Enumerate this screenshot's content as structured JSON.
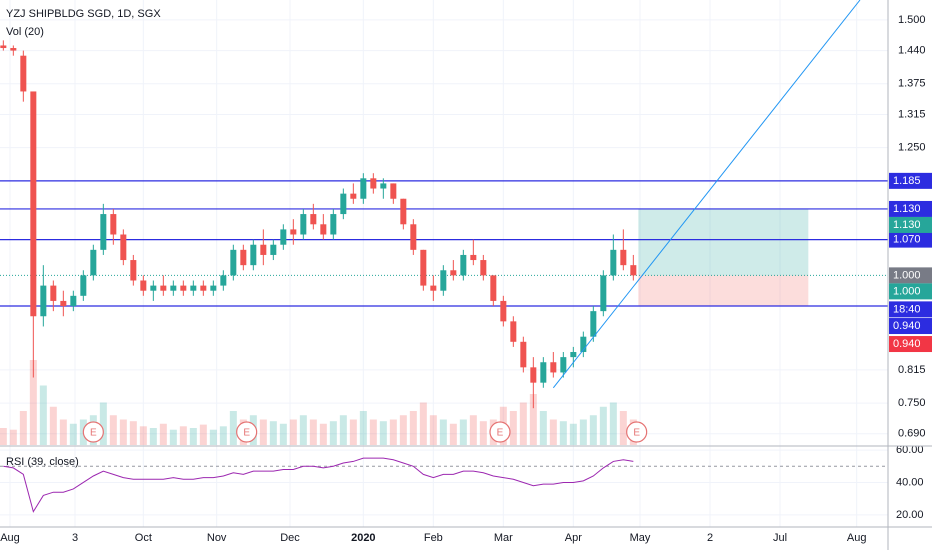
{
  "chart_data": {
    "type": "candlestick",
    "title": "YZJ SHIPBLDG SGD, 1D, SGX",
    "up_color": "#26a69a",
    "down_color": "#ef5350",
    "xlim": [
      -1,
      265.4
    ],
    "ylim": [
      0.668,
      1.539
    ],
    "grid": true,
    "xticks": [
      {
        "value": 2,
        "label": "Aug"
      },
      {
        "value": 21.5,
        "label": "3"
      },
      {
        "value": 42,
        "label": "Oct"
      },
      {
        "value": 64,
        "label": "Nov"
      },
      {
        "value": 86,
        "label": "Dec"
      },
      {
        "value": 108,
        "label": "2020"
      },
      {
        "value": 129,
        "label": "Feb"
      },
      {
        "value": 150,
        "label": "Mar"
      },
      {
        "value": 171,
        "label": "Apr"
      },
      {
        "value": 191,
        "label": "May"
      },
      {
        "value": 212,
        "label": "2"
      },
      {
        "value": 233,
        "label": "Jul"
      },
      {
        "value": 256,
        "label": "Aug"
      }
    ],
    "yticks": [
      {
        "value": 1.5,
        "label": "1.500"
      },
      {
        "value": 1.44,
        "label": "1.440"
      },
      {
        "value": 1.375,
        "label": "1.375"
      },
      {
        "value": 1.315,
        "label": "1.315"
      },
      {
        "value": 1.25,
        "label": "1.250"
      },
      {
        "value": 0.815,
        "label": "0.815"
      },
      {
        "value": 0.75,
        "label": "0.750"
      },
      {
        "value": 0.69,
        "label": "0.690"
      }
    ],
    "x": [
      0,
      3,
      6,
      9,
      12,
      15,
      18,
      21,
      24,
      27,
      30,
      33,
      36,
      39,
      42,
      45,
      48,
      51,
      54,
      57,
      60,
      63,
      66,
      69,
      72,
      75,
      78,
      81,
      84,
      87,
      90,
      93,
      96,
      99,
      102,
      105,
      108,
      111,
      114,
      117,
      120,
      123,
      126,
      129,
      132,
      135,
      138,
      141,
      144,
      147,
      150,
      153,
      156,
      159,
      162,
      165,
      168,
      171,
      174,
      177,
      180,
      183,
      186,
      189
    ],
    "candles": [
      [
        1.45,
        1.46,
        1.44,
        1.445
      ],
      [
        1.445,
        1.45,
        1.43,
        1.44
      ],
      [
        1.43,
        1.44,
        1.34,
        1.36
      ],
      [
        1.36,
        1.36,
        0.8,
        0.92
      ],
      [
        0.92,
        1.02,
        0.9,
        0.98
      ],
      [
        0.98,
        0.99,
        0.93,
        0.95
      ],
      [
        0.95,
        0.97,
        0.92,
        0.94
      ],
      [
        0.94,
        0.97,
        0.93,
        0.96
      ],
      [
        0.96,
        1.01,
        0.95,
        1.0
      ],
      [
        1.0,
        1.06,
        0.99,
        1.05
      ],
      [
        1.05,
        1.14,
        1.04,
        1.12
      ],
      [
        1.12,
        1.13,
        1.06,
        1.08
      ],
      [
        1.08,
        1.09,
        1.02,
        1.03
      ],
      [
        1.03,
        1.04,
        0.98,
        0.99
      ],
      [
        0.99,
        1.0,
        0.96,
        0.97
      ],
      [
        0.97,
        0.99,
        0.95,
        0.98
      ],
      [
        0.98,
        1.0,
        0.96,
        0.97
      ],
      [
        0.97,
        0.99,
        0.96,
        0.98
      ],
      [
        0.98,
        0.99,
        0.96,
        0.97
      ],
      [
        0.97,
        0.99,
        0.96,
        0.98
      ],
      [
        0.98,
        0.99,
        0.96,
        0.97
      ],
      [
        0.97,
        0.99,
        0.96,
        0.98
      ],
      [
        0.98,
        1.01,
        0.97,
        1.0
      ],
      [
        1.0,
        1.06,
        0.99,
        1.05
      ],
      [
        1.05,
        1.06,
        1.01,
        1.02
      ],
      [
        1.02,
        1.07,
        1.01,
        1.06
      ],
      [
        1.06,
        1.09,
        1.02,
        1.04
      ],
      [
        1.04,
        1.07,
        1.03,
        1.06
      ],
      [
        1.06,
        1.1,
        1.05,
        1.09
      ],
      [
        1.09,
        1.11,
        1.06,
        1.08
      ],
      [
        1.08,
        1.13,
        1.07,
        1.12
      ],
      [
        1.12,
        1.14,
        1.09,
        1.1
      ],
      [
        1.1,
        1.12,
        1.07,
        1.08
      ],
      [
        1.08,
        1.13,
        1.07,
        1.12
      ],
      [
        1.12,
        1.17,
        1.11,
        1.16
      ],
      [
        1.16,
        1.18,
        1.14,
        1.15
      ],
      [
        1.15,
        1.2,
        1.14,
        1.19
      ],
      [
        1.19,
        1.2,
        1.16,
        1.17
      ],
      [
        1.17,
        1.19,
        1.15,
        1.18
      ],
      [
        1.18,
        1.18,
        1.14,
        1.15
      ],
      [
        1.15,
        1.15,
        1.09,
        1.1
      ],
      [
        1.1,
        1.11,
        1.04,
        1.05
      ],
      [
        1.05,
        1.05,
        0.97,
        0.98
      ],
      [
        0.98,
        1.0,
        0.95,
        0.97
      ],
      [
        0.97,
        1.02,
        0.96,
        1.01
      ],
      [
        1.01,
        1.03,
        0.99,
        1.0
      ],
      [
        1.0,
        1.05,
        0.99,
        1.04
      ],
      [
        1.04,
        1.07,
        1.02,
        1.03
      ],
      [
        1.03,
        1.04,
        0.99,
        1.0
      ],
      [
        1.0,
        1.0,
        0.94,
        0.95
      ],
      [
        0.95,
        0.96,
        0.9,
        0.91
      ],
      [
        0.91,
        0.92,
        0.86,
        0.87
      ],
      [
        0.87,
        0.88,
        0.81,
        0.82
      ],
      [
        0.82,
        0.84,
        0.74,
        0.79
      ],
      [
        0.79,
        0.84,
        0.78,
        0.83
      ],
      [
        0.83,
        0.85,
        0.8,
        0.81
      ],
      [
        0.81,
        0.85,
        0.8,
        0.84
      ],
      [
        0.84,
        0.86,
        0.82,
        0.85
      ],
      [
        0.85,
        0.89,
        0.84,
        0.88
      ],
      [
        0.88,
        0.94,
        0.87,
        0.93
      ],
      [
        0.93,
        1.01,
        0.92,
        1.0
      ],
      [
        1.0,
        1.08,
        0.99,
        1.05
      ],
      [
        1.05,
        1.09,
        1.01,
        1.02
      ],
      [
        1.02,
        1.04,
        0.99,
        1.0
      ]
    ],
    "volume": {
      "title": "Vol (20)",
      "values": [
        20,
        18,
        40,
        100,
        70,
        45,
        30,
        25,
        30,
        35,
        50,
        35,
        30,
        28,
        22,
        20,
        25,
        18,
        22,
        20,
        24,
        18,
        22,
        40,
        30,
        35,
        30,
        28,
        25,
        30,
        35,
        30,
        25,
        28,
        35,
        30,
        40,
        30,
        28,
        30,
        35,
        40,
        50,
        35,
        30,
        25,
        30,
        35,
        28,
        30,
        45,
        40,
        50,
        60,
        40,
        30,
        28,
        25,
        30,
        35,
        45,
        50,
        40,
        30
      ]
    },
    "rsi": {
      "title": "RSI (39, close)",
      "color": "#9c27b0",
      "level": 50,
      "ylim": [
        13.75,
        61.9
      ],
      "yticks": [
        {
          "value": 60,
          "label": "60.00"
        },
        {
          "value": 40,
          "label": "40.00"
        },
        {
          "value": 20,
          "label": "20.00"
        }
      ],
      "values": [
        50,
        49,
        45,
        22,
        32,
        34,
        34,
        36,
        40,
        44,
        47,
        45,
        43,
        42,
        42,
        42,
        42,
        43,
        42,
        42,
        43,
        43,
        44,
        46,
        45,
        47,
        47,
        47,
        48,
        48,
        50,
        50,
        49,
        50,
        52,
        53,
        55,
        55,
        55,
        54,
        52,
        50,
        45,
        43,
        45,
        45,
        47,
        47,
        46,
        44,
        43,
        42,
        40,
        38,
        39,
        39,
        40,
        40,
        41,
        44,
        49,
        53,
        54,
        53
      ]
    },
    "hlines": {
      "color": "#2c2ce0",
      "values": [
        {
          "value": 1.185,
          "label": "1.185"
        },
        {
          "value": 1.13,
          "label": "1.130"
        },
        {
          "value": 1.07,
          "label": "1.070"
        },
        {
          "value": 0.94,
          "label": "0.940"
        }
      ]
    },
    "current_price": {
      "value": 1.0,
      "label": "1.000"
    },
    "countdown": "18:40",
    "position": {
      "x": [
        190.5,
        241.5
      ],
      "entry": {
        "value": 1.0,
        "label": "1.000"
      },
      "target": {
        "value": 1.13,
        "label": "1.130"
      },
      "stop": {
        "value": 0.94,
        "label": "0.940"
      }
    },
    "trendline": {
      "color": "#2196f3",
      "x": [
        165,
        257
      ],
      "y": [
        0.78,
        1.539
      ]
    },
    "earnings": {
      "label": "E",
      "x": [
        27,
        73,
        149,
        190
      ]
    }
  }
}
